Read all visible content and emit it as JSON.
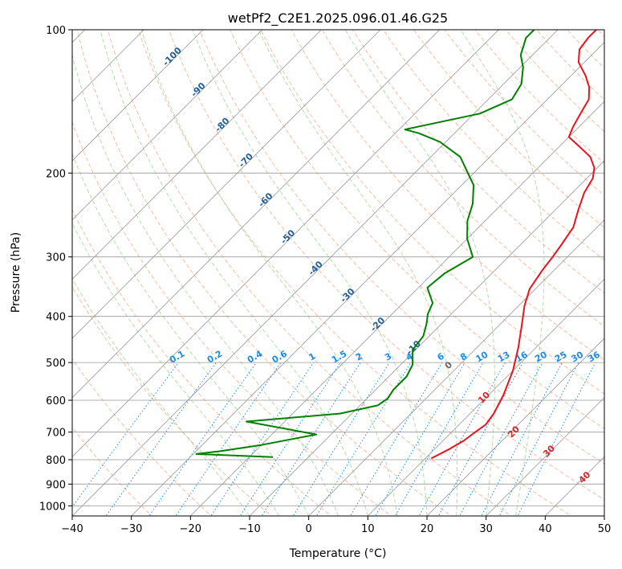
{
  "chart_data": {
    "type": "line",
    "title": "wetPf2_C2E1.2025.096.01.46.G25",
    "xlabel": "Temperature (°C)",
    "ylabel": "Pressure (hPa)",
    "xlim": [
      -40,
      50
    ],
    "ylim": [
      1050,
      100
    ],
    "x_ticks": [
      -40,
      -30,
      -20,
      -10,
      0,
      10,
      20,
      30,
      40,
      50
    ],
    "x_tick_labels": [
      "−40",
      "−30",
      "−20",
      "−10",
      "0",
      "10",
      "20",
      "30",
      "40",
      "50"
    ],
    "y_ticks": [
      100,
      200,
      300,
      400,
      500,
      600,
      700,
      800,
      900,
      1000
    ],
    "y_tick_labels": [
      "100",
      "200",
      "300",
      "400",
      "500",
      "600",
      "700",
      "800",
      "900",
      "1000"
    ],
    "y_scale": "log",
    "grid": true,
    "background_lines": {
      "isobars": "solid grey",
      "isotherms": "solid grey, skewed",
      "dry_adiabats": "dashed light red",
      "moist_adiabats": "dashed light green",
      "mixing_ratio": "dotted blue"
    },
    "colors": {
      "temperature": "#e8141e",
      "dewpoint": "#008000",
      "isotherm_label": "#1f5f9a",
      "mixing_label": "#1e8ce6",
      "moist_label": "#d62728",
      "zero_label": "#666666"
    },
    "series": [
      {
        "color": "#e8141e",
        "points": [
          {
            "t": 11,
            "p": 795
          },
          {
            "t": 12.5,
            "p": 760
          },
          {
            "t": 13.5,
            "p": 730
          },
          {
            "t": 14,
            "p": 700
          },
          {
            "t": 14.5,
            "p": 675
          },
          {
            "t": 14,
            "p": 640
          },
          {
            "t": 12.5,
            "p": 585
          },
          {
            "t": 10,
            "p": 520
          },
          {
            "t": 7,
            "p": 465
          },
          {
            "t": 4,
            "p": 420
          },
          {
            "t": 1,
            "p": 380
          },
          {
            "t": -1,
            "p": 350
          },
          {
            "t": -2,
            "p": 320
          },
          {
            "t": -2.5,
            "p": 300
          },
          {
            "t": -3,
            "p": 285
          },
          {
            "t": -4,
            "p": 260
          },
          {
            "t": -6,
            "p": 240
          },
          {
            "t": -8,
            "p": 220
          },
          {
            "t": -9,
            "p": 205
          },
          {
            "t": -10.5,
            "p": 195
          },
          {
            "t": -13,
            "p": 185
          },
          {
            "t": -17,
            "p": 175
          },
          {
            "t": -20,
            "p": 168
          },
          {
            "t": -21,
            "p": 160
          },
          {
            "t": -22,
            "p": 150
          },
          {
            "t": -23,
            "p": 140
          },
          {
            "t": -25,
            "p": 132
          },
          {
            "t": -27.5,
            "p": 125
          },
          {
            "t": -31,
            "p": 117
          },
          {
            "t": -33,
            "p": 110
          },
          {
            "t": -33.5,
            "p": 104
          },
          {
            "t": -33.5,
            "p": 100
          }
        ]
      },
      {
        "color": "#008000",
        "points": [
          {
            "t": -16,
            "p": 790
          },
          {
            "t": -29.5,
            "p": 778
          },
          {
            "t": -26,
            "p": 768
          },
          {
            "t": -20,
            "p": 745
          },
          {
            "t": -12.5,
            "p": 708
          },
          {
            "t": -26.5,
            "p": 665
          },
          {
            "t": -12,
            "p": 640
          },
          {
            "t": -7,
            "p": 615
          },
          {
            "t": -6.5,
            "p": 595
          },
          {
            "t": -7,
            "p": 570
          },
          {
            "t": -7,
            "p": 535
          },
          {
            "t": -8,
            "p": 505
          },
          {
            "t": -10.5,
            "p": 470
          },
          {
            "t": -11,
            "p": 440
          },
          {
            "t": -12.5,
            "p": 415
          },
          {
            "t": -14,
            "p": 395
          },
          {
            "t": -15,
            "p": 375
          },
          {
            "t": -18.5,
            "p": 348
          },
          {
            "t": -18,
            "p": 325
          },
          {
            "t": -16,
            "p": 300
          },
          {
            "t": -20,
            "p": 275
          },
          {
            "t": -23,
            "p": 252
          },
          {
            "t": -25,
            "p": 232
          },
          {
            "t": -28,
            "p": 212
          },
          {
            "t": -35,
            "p": 185
          },
          {
            "t": -41,
            "p": 172
          },
          {
            "t": -46,
            "p": 165
          },
          {
            "t": -49,
            "p": 162
          },
          {
            "t": -39,
            "p": 150
          },
          {
            "t": -36,
            "p": 140
          },
          {
            "t": -37,
            "p": 130
          },
          {
            "t": -39.5,
            "p": 120
          },
          {
            "t": -42,
            "p": 113
          },
          {
            "t": -44,
            "p": 104
          },
          {
            "t": -44,
            "p": 100
          }
        ]
      }
    ],
    "isotherm_labels": [
      "-100",
      "-90",
      "-80",
      "-70",
      "-60",
      "-50",
      "-40",
      "-30",
      "-20",
      "-10"
    ],
    "mixing_ratio_labels": [
      "0.1",
      "0.2",
      "0.4",
      "0.6",
      "1",
      "1.5",
      "2",
      "3",
      "4",
      "6",
      "8",
      "10",
      "13",
      "16",
      "20",
      "25",
      "30",
      "36"
    ],
    "moist_adiabat_labels": [
      "0",
      "10",
      "20",
      "30",
      "40"
    ]
  }
}
